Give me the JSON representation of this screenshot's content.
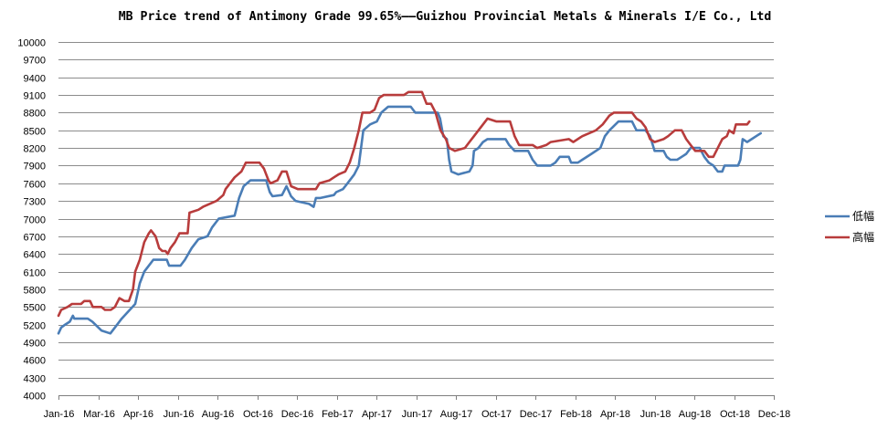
{
  "chart_data": {
    "type": "line",
    "title": "MB Price trend of Antimony Grade 99.65%——Guizhou Provincial Metals & Minerals I/E Co., Ltd",
    "xlabel": "",
    "ylabel": "",
    "ylim": [
      4000,
      10000
    ],
    "ytick_step": 300,
    "grid": "horizontal",
    "legend_position": "right",
    "x_tick_labels": [
      "Jan-16",
      "Mar-16",
      "Apr-16",
      "Jun-16",
      "Aug-16",
      "Oct-16",
      "Dec-16",
      "Feb-17",
      "Apr-17",
      "Jun-17",
      "Aug-17",
      "Oct-17",
      "Dec-17",
      "Feb-18",
      "Apr-18",
      "Jun-18",
      "Aug-18",
      "Oct-18",
      "Dec-18"
    ],
    "x_unit": "data points (~5 per month, weekly)",
    "series": [
      {
        "name": "低幅",
        "color": "#4a7db6",
        "points": [
          [
            0,
            5050
          ],
          [
            0.6,
            5150
          ],
          [
            1.5,
            5200
          ],
          [
            2.5,
            5250
          ],
          [
            3.2,
            5350
          ],
          [
            3.5,
            5300
          ],
          [
            6.5,
            5300
          ],
          [
            7.5,
            5250
          ],
          [
            9.5,
            5100
          ],
          [
            11.5,
            5050
          ],
          [
            12.5,
            5150
          ],
          [
            14,
            5300
          ],
          [
            17,
            5550
          ],
          [
            18,
            5900
          ],
          [
            19,
            6100
          ],
          [
            20,
            6200
          ],
          [
            21,
            6300
          ],
          [
            24,
            6300
          ],
          [
            24.5,
            6200
          ],
          [
            27,
            6200
          ],
          [
            28,
            6300
          ],
          [
            29.5,
            6500
          ],
          [
            31,
            6650
          ],
          [
            33,
            6700
          ],
          [
            34,
            6850
          ],
          [
            35.5,
            7000
          ],
          [
            39,
            7050
          ],
          [
            40,
            7350
          ],
          [
            41,
            7550
          ],
          [
            42.5,
            7650
          ],
          [
            46,
            7650
          ],
          [
            46.8,
            7450
          ],
          [
            47.4,
            7380
          ],
          [
            49.5,
            7400
          ],
          [
            50.5,
            7550
          ],
          [
            51.5,
            7380
          ],
          [
            52.5,
            7300
          ],
          [
            55.5,
            7250
          ],
          [
            56.5,
            7200
          ],
          [
            57,
            7350
          ],
          [
            58,
            7350
          ],
          [
            61,
            7400
          ],
          [
            61.5,
            7450
          ],
          [
            63,
            7500
          ],
          [
            64,
            7600
          ],
          [
            65.5,
            7750
          ],
          [
            66.5,
            7900
          ],
          [
            67.5,
            8500
          ],
          [
            69,
            8600
          ],
          [
            70.5,
            8650
          ],
          [
            71.5,
            8800
          ],
          [
            73,
            8900
          ],
          [
            78,
            8900
          ],
          [
            79,
            8800
          ],
          [
            84,
            8800
          ],
          [
            84.5,
            8700
          ],
          [
            85.2,
            8400
          ],
          [
            86,
            8350
          ],
          [
            86.5,
            8000
          ],
          [
            87,
            7800
          ],
          [
            88.5,
            7750
          ],
          [
            91,
            7800
          ],
          [
            91.7,
            7900
          ],
          [
            92,
            8150
          ],
          [
            93,
            8200
          ],
          [
            94,
            8300
          ],
          [
            95,
            8350
          ],
          [
            99,
            8350
          ],
          [
            99.8,
            8250
          ],
          [
            101,
            8150
          ],
          [
            104,
            8150
          ],
          [
            105,
            8000
          ],
          [
            106,
            7900
          ],
          [
            109,
            7900
          ],
          [
            110,
            7950
          ],
          [
            111,
            8050
          ],
          [
            113,
            8050
          ],
          [
            113.5,
            7950
          ],
          [
            115,
            7950
          ],
          [
            116,
            8000
          ],
          [
            118,
            8100
          ],
          [
            120,
            8200
          ],
          [
            121,
            8400
          ],
          [
            122,
            8500
          ],
          [
            124,
            8650
          ],
          [
            127,
            8650
          ],
          [
            128,
            8500
          ],
          [
            130,
            8500
          ],
          [
            131,
            8400
          ],
          [
            132,
            8150
          ],
          [
            134,
            8150
          ],
          [
            134.7,
            8050
          ],
          [
            135.5,
            8000
          ],
          [
            137,
            8000
          ],
          [
            138,
            8050
          ],
          [
            139,
            8100
          ],
          [
            140,
            8200
          ],
          [
            142,
            8200
          ],
          [
            143,
            8050
          ],
          [
            144,
            7950
          ],
          [
            145,
            7900
          ],
          [
            146,
            7800
          ],
          [
            147,
            7800
          ],
          [
            147.5,
            7900
          ],
          [
            150.5,
            7900
          ],
          [
            151,
            8000
          ],
          [
            151.5,
            8350
          ],
          [
            152.5,
            8300
          ],
          [
            153.5,
            8350
          ],
          [
            154.5,
            8400
          ],
          [
            155.5,
            8450
          ]
        ]
      },
      {
        "name": "高幅",
        "color": "#b83c3c",
        "points": [
          [
            0,
            5350
          ],
          [
            0.6,
            5450
          ],
          [
            2,
            5500
          ],
          [
            3,
            5550
          ],
          [
            5,
            5550
          ],
          [
            5.7,
            5600
          ],
          [
            7,
            5600
          ],
          [
            7.6,
            5500
          ],
          [
            9.5,
            5500
          ],
          [
            10.3,
            5450
          ],
          [
            11.6,
            5450
          ],
          [
            12.5,
            5500
          ],
          [
            13.5,
            5650
          ],
          [
            14.6,
            5600
          ],
          [
            15.6,
            5600
          ],
          [
            16.5,
            5800
          ],
          [
            17,
            6100
          ],
          [
            18,
            6300
          ],
          [
            19,
            6600
          ],
          [
            20,
            6750
          ],
          [
            20.5,
            6800
          ],
          [
            21.5,
            6700
          ],
          [
            22.3,
            6500
          ],
          [
            23,
            6450
          ],
          [
            23.7,
            6450
          ],
          [
            24.2,
            6400
          ],
          [
            24.8,
            6500
          ],
          [
            25.8,
            6600
          ],
          [
            26.8,
            6750
          ],
          [
            28.6,
            6750
          ],
          [
            29,
            7100
          ],
          [
            31,
            7150
          ],
          [
            32,
            7200
          ],
          [
            35,
            7300
          ],
          [
            36.5,
            7400
          ],
          [
            37,
            7500
          ],
          [
            38,
            7600
          ],
          [
            39,
            7700
          ],
          [
            40.5,
            7800
          ],
          [
            41.5,
            7950
          ],
          [
            44.5,
            7950
          ],
          [
            45.5,
            7850
          ],
          [
            46.5,
            7650
          ],
          [
            47,
            7600
          ],
          [
            48.5,
            7650
          ],
          [
            49.5,
            7800
          ],
          [
            50.5,
            7800
          ],
          [
            51.5,
            7550
          ],
          [
            53,
            7500
          ],
          [
            57,
            7500
          ],
          [
            57.8,
            7600
          ],
          [
            60,
            7650
          ],
          [
            61,
            7700
          ],
          [
            62,
            7750
          ],
          [
            63.5,
            7800
          ],
          [
            64.5,
            7950
          ],
          [
            65.5,
            8200
          ],
          [
            66.5,
            8500
          ],
          [
            67.3,
            8800
          ],
          [
            69,
            8800
          ],
          [
            70,
            8850
          ],
          [
            71,
            9050
          ],
          [
            72,
            9100
          ],
          [
            74,
            9100
          ],
          [
            76.5,
            9100
          ],
          [
            77.5,
            9150
          ],
          [
            80.5,
            9150
          ],
          [
            81.5,
            8950
          ],
          [
            82.5,
            8950
          ],
          [
            83.5,
            8800
          ],
          [
            84.6,
            8500
          ],
          [
            85.8,
            8350
          ],
          [
            86.5,
            8200
          ],
          [
            87.8,
            8150
          ],
          [
            90,
            8200
          ],
          [
            91,
            8300
          ],
          [
            92,
            8400
          ],
          [
            93,
            8500
          ],
          [
            94,
            8600
          ],
          [
            95,
            8700
          ],
          [
            97,
            8650
          ],
          [
            100,
            8650
          ],
          [
            101,
            8400
          ],
          [
            102,
            8250
          ],
          [
            105,
            8250
          ],
          [
            106,
            8200
          ],
          [
            108,
            8250
          ],
          [
            109,
            8300
          ],
          [
            113,
            8350
          ],
          [
            114,
            8300
          ],
          [
            116,
            8400
          ],
          [
            119,
            8500
          ],
          [
            120.5,
            8600
          ],
          [
            122,
            8750
          ],
          [
            123,
            8800
          ],
          [
            127,
            8800
          ],
          [
            128,
            8700
          ],
          [
            129,
            8650
          ],
          [
            130,
            8550
          ],
          [
            131,
            8350
          ],
          [
            132,
            8300
          ],
          [
            134,
            8350
          ],
          [
            135,
            8400
          ],
          [
            136.5,
            8500
          ],
          [
            138,
            8500
          ],
          [
            139,
            8350
          ],
          [
            140,
            8250
          ],
          [
            141,
            8150
          ],
          [
            143,
            8150
          ],
          [
            144,
            8050
          ],
          [
            145,
            8050
          ],
          [
            146,
            8200
          ],
          [
            147,
            8350
          ],
          [
            148,
            8400
          ],
          [
            148.5,
            8500
          ],
          [
            149.5,
            8450
          ],
          [
            150,
            8600
          ],
          [
            152.5,
            8600
          ],
          [
            153,
            8650
          ]
        ]
      }
    ]
  }
}
